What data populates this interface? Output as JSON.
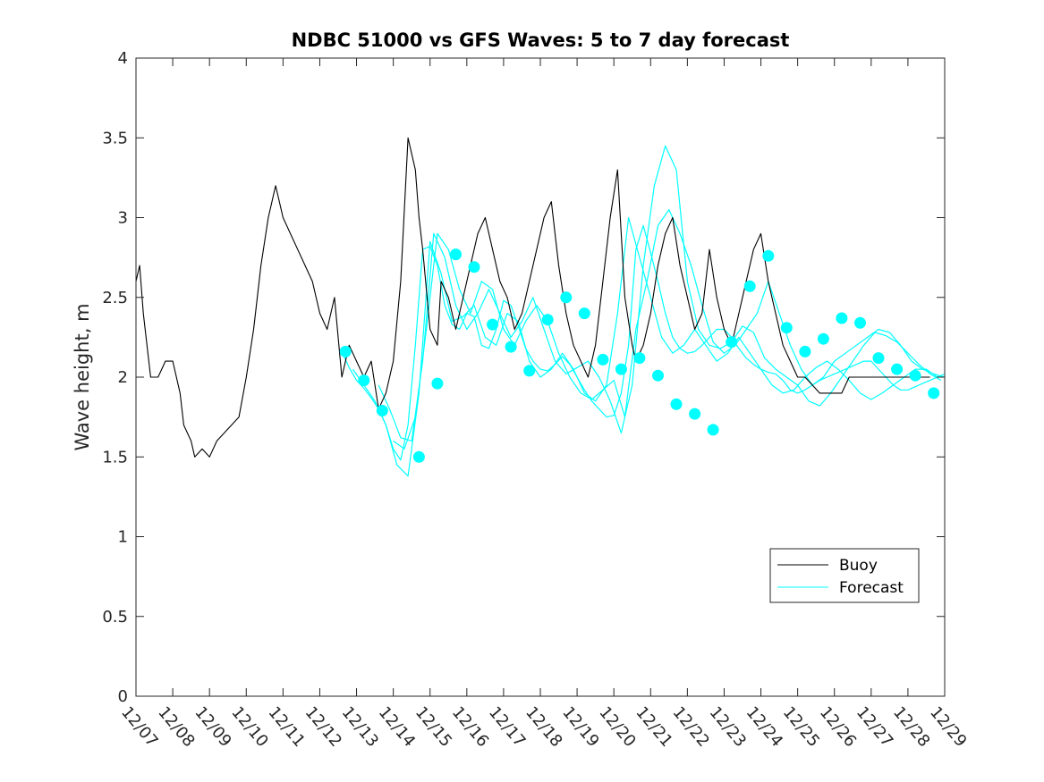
{
  "chart_data": {
    "type": "line",
    "title": "NDBC 51000 vs GFS Waves: 5 to 7 day forecast",
    "xlabel": "",
    "ylabel": "Wave height, m",
    "xlim": [
      0,
      22
    ],
    "ylim": [
      0,
      4
    ],
    "x_ticks": [
      0,
      1,
      2,
      3,
      4,
      5,
      6,
      7,
      8,
      9,
      10,
      11,
      12,
      13,
      14,
      15,
      16,
      17,
      18,
      19,
      20,
      21,
      22
    ],
    "x_tick_labels": [
      "12/07",
      "12/08",
      "12/09",
      "12/10",
      "12/11",
      "12/12",
      "12/13",
      "12/14",
      "12/15",
      "12/16",
      "12/17",
      "12/18",
      "12/19",
      "12/20",
      "12/21",
      "12/22",
      "12/23",
      "12/24",
      "12/25",
      "12/26",
      "12/27",
      "12/28",
      "12/29"
    ],
    "y_ticks": [
      0,
      0.5,
      1,
      1.5,
      2,
      2.5,
      3,
      3.5,
      4
    ],
    "y_tick_labels": [
      "0",
      "0.5",
      "1",
      "1.5",
      "2",
      "2.5",
      "3",
      "3.5",
      "4"
    ],
    "legend": {
      "position": "bottom-right",
      "entries": [
        "Buoy",
        "Forecast"
      ]
    },
    "colors": {
      "buoy": "#000000",
      "forecast": "#00FFFF",
      "axes": "#262626"
    },
    "series": [
      {
        "name": "Buoy",
        "x": [
          0,
          0.1,
          0.2,
          0.3,
          0.4,
          0.6,
          0.8,
          1.0,
          1.2,
          1.3,
          1.5,
          1.6,
          1.8,
          2.0,
          2.2,
          2.4,
          2.6,
          2.8,
          3.0,
          3.2,
          3.4,
          3.6,
          3.8,
          4.0,
          4.2,
          4.4,
          4.6,
          4.8,
          5.0,
          5.2,
          5.4,
          5.6,
          5.8,
          6.0,
          6.2,
          6.4,
          6.6,
          6.8,
          7.0,
          7.2,
          7.4,
          7.6,
          7.7,
          7.8,
          8.0,
          8.2,
          8.3,
          8.5,
          8.7,
          8.9,
          9.1,
          9.3,
          9.5,
          9.7,
          9.9,
          10.1,
          10.3,
          10.5,
          10.7,
          10.9,
          11.1,
          11.3,
          11.5,
          11.7,
          11.9,
          12.1,
          12.3,
          12.5,
          12.7,
          12.9,
          13.1,
          13.3,
          13.5,
          13.6,
          13.8,
          14.0,
          14.2,
          14.4,
          14.6,
          14.8,
          15.0,
          15.2,
          15.4,
          15.6,
          15.8,
          16.0,
          16.2,
          16.4,
          16.6,
          16.8,
          17.0,
          17.2,
          17.4,
          17.6,
          17.8,
          18.0,
          18.2,
          18.4,
          18.6,
          18.8,
          19.0,
          19.2,
          19.4,
          19.6,
          19.8,
          20.0,
          20.2,
          20.4,
          20.6,
          20.8,
          21.0,
          21.2,
          21.4,
          21.6
        ],
        "y": [
          2.6,
          2.7,
          2.4,
          2.2,
          2.0,
          2.0,
          2.1,
          2.1,
          1.9,
          1.7,
          1.6,
          1.5,
          1.55,
          1.5,
          1.6,
          1.65,
          1.7,
          1.75,
          2.0,
          2.3,
          2.7,
          3.0,
          3.2,
          3.0,
          2.9,
          2.8,
          2.7,
          2.6,
          2.4,
          2.3,
          2.5,
          2.0,
          2.2,
          2.1,
          2.0,
          2.1,
          1.8,
          1.9,
          2.1,
          2.6,
          3.5,
          3.3,
          3.0,
          2.8,
          2.3,
          2.2,
          2.6,
          2.5,
          2.3,
          2.5,
          2.7,
          2.9,
          3.0,
          2.8,
          2.6,
          2.5,
          2.3,
          2.4,
          2.6,
          2.8,
          3.0,
          3.1,
          2.7,
          2.4,
          2.2,
          2.1,
          2.0,
          2.2,
          2.6,
          3.0,
          3.3,
          2.5,
          2.2,
          2.1,
          2.2,
          2.4,
          2.7,
          2.9,
          3.0,
          2.7,
          2.5,
          2.3,
          2.4,
          2.8,
          2.5,
          2.3,
          2.2,
          2.4,
          2.6,
          2.8,
          2.9,
          2.6,
          2.4,
          2.2,
          2.1,
          2.0,
          2.0,
          1.95,
          1.9,
          1.9,
          1.9,
          1.9,
          2.0,
          2.0,
          2.0,
          2.0,
          2.0,
          2.0,
          2.0,
          2.0,
          2.0,
          2.0,
          2.0,
          2.0
        ]
      },
      {
        "name": "Forecast",
        "runs": [
          {
            "x": [
              5.6,
              5.8,
              6.0,
              6.2,
              6.4,
              6.6,
              6.8,
              7.0,
              7.2,
              7.4,
              7.6,
              7.8,
              8.0,
              8.2,
              8.4,
              8.6,
              8.8,
              9.0,
              9.2,
              9.4,
              9.6,
              9.8,
              10.0,
              10.2,
              10.4,
              10.6,
              10.8,
              11.0,
              11.2,
              11.4,
              11.6,
              11.8,
              12.0,
              12.2,
              12.4,
              12.6,
              12.8,
              13.0,
              13.2,
              13.4,
              13.6,
              13.8,
              14.0,
              14.2,
              14.4,
              14.6,
              14.8,
              15.0,
              15.2,
              15.4,
              15.6,
              15.8,
              16.0,
              16.2,
              16.4,
              16.6,
              16.8,
              17.0,
              17.2,
              17.4,
              17.6,
              17.8,
              18.0,
              18.2,
              18.4,
              18.6,
              18.8,
              19.0,
              19.2,
              19.4,
              19.6,
              19.8,
              20.0,
              20.2,
              20.4,
              20.6,
              20.8,
              21.0,
              21.2,
              21.4,
              21.6,
              21.8,
              22.0
            ],
            "y": [
              2.16,
              2.06,
              1.98,
              1.93,
              1.87,
              1.8,
              1.7,
              1.55,
              1.48,
              1.7,
              2.2,
              2.8,
              2.82,
              2.7,
              2.45,
              2.33,
              2.3,
              2.4,
              2.38,
              2.2,
              2.18,
              2.3,
              2.48,
              2.45,
              2.32,
              2.18,
              2.1,
              2.05,
              2.04,
              2.08,
              2.13,
              2.08,
              2.0,
              1.92,
              1.85,
              1.8,
              1.75,
              1.76,
              1.9,
              2.2,
              2.8,
              2.95,
              2.78,
              2.6,
              2.4,
              2.25,
              2.18,
              2.15,
              2.16,
              2.2,
              2.25,
              2.3,
              2.3,
              2.25,
              2.18,
              2.12,
              2.08,
              2.05,
              2.03,
              2.02,
              1.98,
              1.92,
              1.9,
              1.92,
              1.95,
              1.98,
              2.0,
              2.02,
              2.04,
              2.06,
              2.08,
              2.1,
              2.1,
              2.05,
              2.0,
              1.95,
              1.92,
              1.92,
              1.94,
              1.96,
              1.98,
              2.0,
              2.02
            ]
          },
          {
            "x": [
              5.9,
              6.2,
              6.5,
              6.8,
              7.1,
              7.4,
              7.7,
              8.0,
              8.3,
              8.6,
              8.9,
              9.2,
              9.5,
              9.8,
              10.1,
              10.4,
              10.7,
              11.0,
              11.3,
              11.6,
              11.9,
              12.2,
              12.5,
              12.8,
              13.1,
              13.4,
              13.7,
              14.0,
              14.3,
              14.6,
              14.9,
              15.2,
              15.5,
              15.8,
              16.1,
              16.4,
              16.7,
              17.0,
              17.3,
              17.6,
              17.9,
              18.2,
              18.5,
              18.8,
              19.1,
              19.4,
              19.7,
              20.0,
              20.3,
              20.6,
              20.9,
              21.2,
              21.5,
              21.8
            ],
            "y": [
              2.05,
              1.95,
              1.85,
              1.7,
              1.45,
              1.38,
              1.9,
              2.85,
              2.65,
              2.35,
              2.38,
              2.45,
              2.25,
              2.2,
              2.4,
              2.35,
              2.1,
              2.0,
              2.05,
              2.15,
              2.05,
              1.9,
              1.85,
              1.95,
              2.4,
              3.0,
              2.75,
              2.5,
              2.25,
              2.15,
              2.2,
              2.3,
              2.2,
              2.1,
              2.15,
              2.25,
              2.15,
              2.05,
              1.95,
              1.9,
              1.92,
              2.0,
              2.06,
              2.1,
              2.05,
              1.98,
              1.9,
              1.86,
              1.9,
              1.95,
              2.0,
              2.05,
              2.05,
              2.0
            ]
          },
          {
            "x": [
              6.6,
              6.9,
              7.2,
              7.5,
              7.8,
              8.1,
              8.4,
              8.7,
              9.0,
              9.3,
              9.6,
              9.9,
              10.2,
              10.5,
              10.8,
              11.1,
              11.4,
              11.7,
              12.0,
              12.3,
              12.6,
              12.9,
              13.2,
              13.5,
              13.8,
              14.1,
              14.4,
              14.7,
              15.0,
              15.3,
              15.6,
              15.9,
              16.2,
              16.5,
              16.8,
              17.1,
              17.4,
              17.7,
              18.0,
              18.3,
              18.6,
              18.9,
              19.2,
              19.5,
              19.8,
              20.1,
              20.4,
              20.7,
              21.0,
              21.3,
              21.6,
              21.9
            ],
            "y": [
              1.95,
              1.8,
              1.62,
              1.6,
              2.1,
              2.9,
              2.75,
              2.45,
              2.3,
              2.4,
              2.55,
              2.4,
              2.25,
              2.35,
              2.5,
              2.3,
              2.1,
              2.02,
              2.06,
              2.1,
              2.0,
              1.85,
              1.65,
              1.95,
              2.7,
              3.2,
              3.45,
              3.3,
              2.6,
              2.3,
              2.2,
              2.18,
              2.22,
              2.32,
              2.28,
              2.12,
              2.05,
              2.0,
              1.95,
              1.85,
              1.82,
              1.9,
              2.0,
              2.1,
              2.2,
              2.28,
              2.26,
              2.22,
              2.15,
              2.08,
              2.02,
              1.98
            ]
          },
          {
            "x": [
              7.0,
              7.3,
              7.6,
              7.9,
              8.2,
              8.5,
              8.8,
              9.1,
              9.4,
              9.7,
              10.0,
              10.3,
              10.6,
              10.9,
              11.2,
              11.5,
              11.8,
              12.1,
              12.4,
              12.7,
              13.0,
              13.3,
              13.6,
              13.9,
              14.2,
              14.5,
              14.8,
              15.1,
              15.4,
              15.7,
              16.0,
              16.3,
              16.6,
              16.9,
              17.2,
              17.5,
              17.8,
              18.1,
              18.4,
              18.7,
              19.0,
              19.3,
              19.6,
              19.9,
              20.2,
              20.5,
              20.8,
              21.1,
              21.4,
              21.7,
              22.0
            ],
            "y": [
              1.6,
              1.55,
              1.75,
              2.3,
              2.9,
              2.8,
              2.55,
              2.4,
              2.6,
              2.55,
              2.3,
              2.2,
              2.35,
              2.45,
              2.35,
              2.15,
              2.0,
              1.9,
              1.86,
              1.92,
              1.98,
              1.75,
              2.3,
              2.6,
              2.95,
              3.05,
              2.9,
              2.7,
              2.45,
              2.22,
              2.15,
              2.2,
              2.3,
              2.4,
              2.6,
              2.4,
              2.2,
              2.05,
              1.95,
              2.0,
              2.1,
              2.15,
              2.2,
              2.25,
              2.3,
              2.28,
              2.2,
              2.1,
              2.05,
              2.02,
              2.0
            ]
          }
        ],
        "markers": {
          "x": [
            5.7,
            6.2,
            6.7,
            7.7,
            8.2,
            8.7,
            9.2,
            9.7,
            10.2,
            10.7,
            11.2,
            11.7,
            12.2,
            12.7,
            13.2,
            13.7,
            14.2,
            14.7,
            15.2,
            15.7,
            16.2,
            16.7,
            17.2,
            17.7,
            18.2,
            18.7,
            19.2,
            19.7,
            20.2,
            20.7,
            21.2,
            21.7
          ],
          "y": [
            2.16,
            1.98,
            1.79,
            1.5,
            1.96,
            2.77,
            2.69,
            2.33,
            2.19,
            2.04,
            2.36,
            2.5,
            2.4,
            2.11,
            2.05,
            2.12,
            2.01,
            1.83,
            1.77,
            1.67,
            2.22,
            2.57,
            2.76,
            2.31,
            2.16,
            2.24,
            2.37,
            2.34,
            2.12,
            2.05,
            2.01,
            1.9
          ]
        }
      }
    ]
  }
}
